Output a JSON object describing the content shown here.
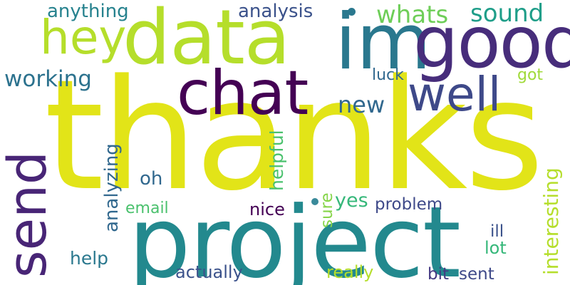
{
  "words": {
    "thanks": {
      "text": "thanks",
      "color": "#e2e418"
    },
    "project": {
      "text": "project",
      "color": "#23898e"
    },
    "data": {
      "text": "data",
      "color": "#b5de2b"
    },
    "im": {
      "text": "im",
      "color": "#2a788e"
    },
    "good": {
      "text": "good",
      "color": "#472d7b"
    },
    "chat": {
      "text": "chat",
      "color": "#440154"
    },
    "send": {
      "text": "send",
      "color": "#482576"
    },
    "well": {
      "text": "well",
      "color": "#3e4989"
    },
    "hey": {
      "text": "hey",
      "color": "#b5de2b"
    },
    "whats": {
      "text": "whats",
      "color": "#6ece58"
    },
    "sound": {
      "text": "sound",
      "color": "#1f9e89"
    },
    "analysis": {
      "text": "analysis",
      "color": "#3b528b"
    },
    "anything": {
      "text": "anything",
      "color": "#26828e"
    },
    "working": {
      "text": "working",
      "color": "#2c728e"
    },
    "new": {
      "text": "new",
      "color": "#31688e"
    },
    "luck": {
      "text": "luck",
      "color": "#31688e"
    },
    "got": {
      "text": "got",
      "color": "#a0da39"
    },
    "interesting": {
      "text": "interesting",
      "color": "#b5de2b"
    },
    "helpful": {
      "text": "helpful",
      "color": "#4ac16d"
    },
    "analyzing": {
      "text": "analyzing",
      "color": "#31688e"
    },
    "oh": {
      "text": "oh",
      "color": "#31688e"
    },
    "email": {
      "text": "email",
      "color": "#4ac16d"
    },
    "nice": {
      "text": "nice",
      "color": "#440154"
    },
    "sure": {
      "text": "sure",
      "color": "#86d549"
    },
    "yes": {
      "text": "yes",
      "color": "#35b779"
    },
    "problem": {
      "text": "problem",
      "color": "#3e4989"
    },
    "ill": {
      "text": "ill",
      "color": "#3b528b"
    },
    "lot": {
      "text": "lot",
      "color": "#35b779"
    },
    "help": {
      "text": "help",
      "color": "#2a788e"
    },
    "actually": {
      "text": "actually",
      "color": "#3b528b"
    },
    "really": {
      "text": "really",
      "color": "#b5de2b"
    },
    "bit": {
      "text": "bit",
      "color": "#443983"
    },
    "sent": {
      "text": "sent",
      "color": "#3e4989"
    }
  },
  "colors": {
    "background": "#ffffff",
    "dot_teal": "#2a788e",
    "dot_light_teal": "#3a8a9a"
  }
}
